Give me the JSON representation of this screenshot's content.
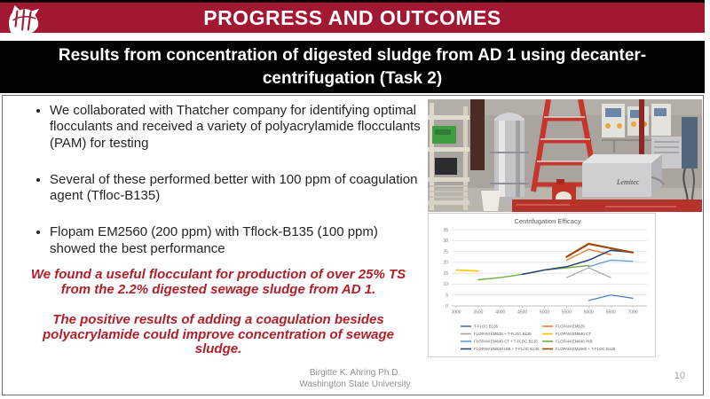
{
  "slide": {
    "header": {
      "title": "PROGRESS AND OUTCOMES"
    },
    "subtitle": {
      "line1": "Results from concentration of digested sludge from AD 1 using decanter-",
      "line2": "centrifugation (Task 2)"
    },
    "bullets": [
      "We collaborated with Thatcher company for identifying optimal flocculants and received a variety of polyacrylamide flocculants (PAM) for testing",
      "Several of these performed better with 100 ppm of coagulation agent (Tfloc-B135)",
      "Flopam EM2560 (200 ppm) with Tflock-B135 (100 ppm) showed the best performance"
    ],
    "highlights": [
      "We found a useful flocculant for production of over 25% TS from the 2.2% digested sewage sludge from AD 1.",
      "The positive results of adding a coagulation besides polyacrylamide could improve concentration of sewage sludge."
    ],
    "footer": {
      "line1": "Birgitte K. Ahring Ph.D.",
      "line2": "Washington State University"
    },
    "page_number": "10",
    "colors": {
      "header_crimson": "#A21833",
      "subtitle_band": "#020202",
      "highlight_red": "#B01E28",
      "footer_gray": "#8F8F8F"
    },
    "icons": {
      "logo": "wsu-cougar-logo"
    }
  },
  "photo": {
    "equipment_label": "Lemitec"
  },
  "chart_data": {
    "type": "line",
    "title": "Centrifugation Efficacy",
    "xlabel": "",
    "ylabel": "",
    "x_ticks": [
      3000,
      3500,
      4000,
      4500,
      5000,
      5500,
      6000,
      6500,
      7000
    ],
    "ylim": [
      0,
      35
    ],
    "y_tick_step": 5,
    "grid": true,
    "legend_position": "bottom",
    "series": [
      {
        "name": "T-FLOC B135",
        "color": "#4472C4",
        "width": 1.2,
        "points": [
          [
            6000,
            2.5
          ],
          [
            6500,
            5
          ],
          [
            7000,
            3.5
          ]
        ]
      },
      {
        "name": "FLOPAM EM535",
        "color": "#ED7D31",
        "width": 1.4,
        "points": [
          [
            5500,
            21
          ],
          [
            6000,
            26
          ],
          [
            6500,
            23.5
          ]
        ]
      },
      {
        "name": "FLOPAM EM535 + T-FLOC B135",
        "color": "#A5A5A5",
        "width": 1.2,
        "points": [
          [
            5500,
            13
          ],
          [
            6000,
            17.5
          ],
          [
            6500,
            13
          ]
        ]
      },
      {
        "name": "FLOPAM EM640 CT",
        "color": "#FFC000",
        "width": 1.6,
        "points": [
          [
            3000,
            16.5
          ],
          [
            3500,
            16
          ]
        ]
      },
      {
        "name": "FLOPAM EM640 CT + T-FLOC B135",
        "color": "#5B9BD5",
        "width": 1.3,
        "points": [
          [
            6000,
            18
          ],
          [
            6500,
            21
          ],
          [
            7000,
            20.5
          ]
        ]
      },
      {
        "name": "FLOPAM EM640 HIB",
        "color": "#70AD47",
        "width": 1.4,
        "points": [
          [
            3500,
            12
          ],
          [
            4000,
            13
          ],
          [
            4500,
            14.5
          ],
          [
            5000,
            16.5
          ],
          [
            5500,
            17.5
          ],
          [
            6000,
            18.5
          ]
        ]
      },
      {
        "name": "FLOPAM EM640 HIB + T-FLOC B135",
        "color": "#264478",
        "width": 1.5,
        "points": [
          [
            4500,
            14.5
          ],
          [
            5000,
            16.5
          ],
          [
            5500,
            18
          ],
          [
            6000,
            21
          ],
          [
            6500,
            25.5
          ],
          [
            7000,
            24.5
          ]
        ]
      },
      {
        "name": "FLOPAM EM2560 + T-FLOC B135",
        "color": "#9E480E",
        "width": 2.2,
        "points": [
          [
            5500,
            22.5
          ],
          [
            6000,
            28.5
          ],
          [
            6500,
            26.5
          ],
          [
            7000,
            24.5
          ]
        ]
      }
    ]
  }
}
